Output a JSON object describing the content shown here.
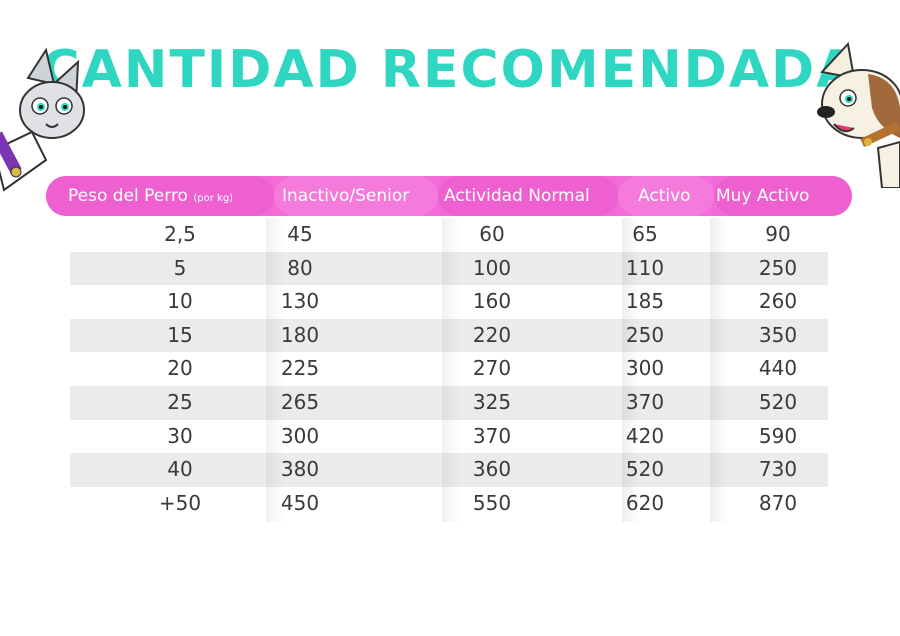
{
  "title": "CANTIDAD RECOMENDADA",
  "table": {
    "headers": [
      "Peso del Perro",
      "Inactivo/Senior",
      "Actividad Normal",
      "Activo",
      "Muy Activo"
    ],
    "header_unit": "(por kg)",
    "rows": [
      [
        "2,5",
        "45",
        "60",
        "65",
        "90"
      ],
      [
        "5",
        "80",
        "100",
        "110",
        "250"
      ],
      [
        "10",
        "130",
        "160",
        "185",
        "260"
      ],
      [
        "15",
        "180",
        "220",
        "250",
        "350"
      ],
      [
        "20",
        "225",
        "270",
        "300",
        "440"
      ],
      [
        "25",
        "265",
        "325",
        "370",
        "520"
      ],
      [
        "30",
        "300",
        "370",
        "420",
        "590"
      ],
      [
        "40",
        "380",
        "360",
        "520",
        "730"
      ],
      [
        "+50",
        "450",
        "550",
        "620",
        "870"
      ]
    ]
  },
  "colors": {
    "title": "#2fd6c1",
    "header": "#f36bd6",
    "alt_row": "#ebebeb",
    "text": "#3a3a3a"
  },
  "decorations": {
    "left": "cartoon-cat-illustration",
    "right": "cartoon-dog-illustration"
  }
}
